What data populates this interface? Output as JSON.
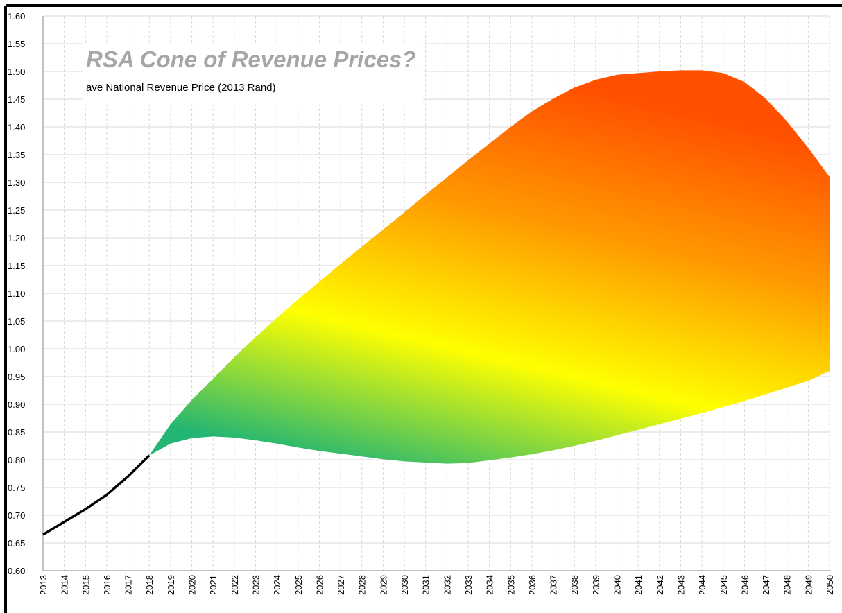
{
  "chart_data": {
    "type": "line",
    "title": "RSA Cone of Revenue Prices?",
    "subtitle": "ave National Revenue Price (2013 Rand)",
    "x": [
      2013,
      2014,
      2015,
      2016,
      2017,
      2018,
      2019,
      2020,
      2021,
      2022,
      2023,
      2024,
      2025,
      2026,
      2027,
      2028,
      2029,
      2030,
      2031,
      2032,
      2033,
      2034,
      2035,
      2036,
      2037,
      2038,
      2039,
      2040,
      2041,
      2042,
      2043,
      2044,
      2045,
      2046,
      2047,
      2048,
      2049,
      2050
    ],
    "series": [
      {
        "color": "#000000",
        "values": [
          0.665,
          0.688,
          0.711,
          0.737,
          0.77,
          0.808,
          null,
          null,
          null,
          null,
          null,
          null,
          null,
          null,
          null,
          null,
          null,
          null,
          null,
          null,
          null,
          null,
          null,
          null,
          null,
          null,
          null,
          null,
          null,
          null,
          null,
          null,
          null,
          null,
          null,
          null,
          null,
          null
        ]
      }
    ],
    "band": {
      "colors": [
        "#ff5000",
        "#ff9a00",
        "#ffff00",
        "#22b573"
      ],
      "upper": [
        null,
        null,
        null,
        null,
        null,
        0.808,
        0.864,
        0.908,
        0.946,
        0.985,
        1.021,
        1.056,
        1.089,
        1.121,
        1.153,
        1.184,
        1.215,
        1.246,
        1.278,
        1.309,
        1.34,
        1.37,
        1.4,
        1.428,
        1.451,
        1.471,
        1.485,
        1.494,
        1.497,
        1.5,
        1.502,
        1.502,
        1.497,
        1.481,
        1.451,
        1.41,
        1.362,
        1.31
      ],
      "lower": [
        null,
        null,
        null,
        null,
        null,
        0.808,
        0.829,
        0.839,
        0.842,
        0.84,
        0.835,
        0.829,
        0.822,
        0.816,
        0.811,
        0.806,
        0.801,
        0.797,
        0.795,
        0.793,
        0.794,
        0.799,
        0.804,
        0.81,
        0.817,
        0.825,
        0.834,
        0.844,
        0.854,
        0.864,
        0.874,
        0.884,
        0.895,
        0.906,
        0.918,
        0.93,
        0.942,
        0.96
      ]
    },
    "xlim": [
      2013,
      2050
    ],
    "xticks": [
      2013,
      2014,
      2015,
      2016,
      2017,
      2018,
      2019,
      2020,
      2021,
      2022,
      2023,
      2024,
      2025,
      2026,
      2027,
      2028,
      2029,
      2030,
      2031,
      2032,
      2033,
      2034,
      2035,
      2036,
      2037,
      2038,
      2039,
      2040,
      2041,
      2042,
      2043,
      2044,
      2045,
      2046,
      2047,
      2048,
      2049,
      2050
    ],
    "ylim": [
      0.6,
      1.6
    ],
    "yticks": [
      {
        "value": 0.6,
        "label": "0.60"
      },
      {
        "value": 0.65,
        "label": "0.65"
      },
      {
        "value": 0.7,
        "label": "0.70"
      },
      {
        "value": 0.75,
        "label": "0.75"
      },
      {
        "value": 0.8,
        "label": "0.80"
      },
      {
        "value": 0.85,
        "label": "0.85"
      },
      {
        "value": 0.9,
        "label": "0.90"
      },
      {
        "value": 0.95,
        "label": "0.95"
      },
      {
        "value": 1.0,
        "label": "1.00"
      },
      {
        "value": 1.05,
        "label": "1.05"
      },
      {
        "value": 1.1,
        "label": "1.10"
      },
      {
        "value": 1.15,
        "label": "1.15"
      },
      {
        "value": 1.2,
        "label": "1.20"
      },
      {
        "value": 1.25,
        "label": "1.25"
      },
      {
        "value": 1.3,
        "label": "1.30"
      },
      {
        "value": 1.35,
        "label": "1.35"
      },
      {
        "value": 1.4,
        "label": "1.40"
      },
      {
        "value": 1.45,
        "label": "1.45"
      },
      {
        "value": 1.5,
        "label": "1.50"
      },
      {
        "value": 1.55,
        "label": "1.55"
      },
      {
        "value": 1.6,
        "label": "1.60"
      }
    ],
    "grid": true
  }
}
